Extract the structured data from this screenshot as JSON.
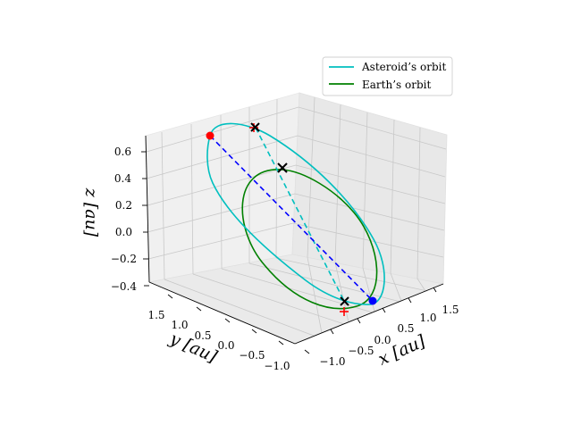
{
  "chart_data": {
    "type": "line",
    "projection": "3d",
    "xlabel": "x [au]",
    "ylabel": "y [au]",
    "zlabel": "z [au]",
    "x_ticks": [
      "−1.0",
      "−0.5",
      "0.0",
      "0.5",
      "1.0",
      "1.5"
    ],
    "y_ticks": [
      "1.5",
      "1.0",
      "0.5",
      "0.0",
      "−0.5",
      "−1.0"
    ],
    "z_ticks": [
      "0.6",
      "0.4",
      "0.2",
      "0.0",
      "−0.2",
      "−0.4"
    ],
    "xlim": [
      -1.2,
      1.8
    ],
    "ylim": [
      -1.2,
      1.8
    ],
    "zlim": [
      -0.45,
      0.7
    ],
    "grid": true,
    "legend_position": "top-right",
    "series": [
      {
        "name": "Asteroid’s orbit",
        "color": "#00bfbf"
      },
      {
        "name": "Earth’s orbit",
        "color": "#008000"
      }
    ],
    "markers": [
      {
        "kind": "filled-circle",
        "color": "#ff0000"
      },
      {
        "kind": "filled-circle",
        "color": "#0000ff"
      },
      {
        "kind": "x",
        "color": "#000000"
      },
      {
        "kind": "x",
        "color": "#000000"
      },
      {
        "kind": "x",
        "color": "#000000"
      },
      {
        "kind": "plus",
        "color": "#ff0000"
      },
      {
        "kind": "plus",
        "color": "#ff0000"
      }
    ],
    "lines": [
      {
        "style": "dashed",
        "color": "#0000ff"
      },
      {
        "style": "dashed",
        "color": "#00bfbf"
      }
    ]
  }
}
